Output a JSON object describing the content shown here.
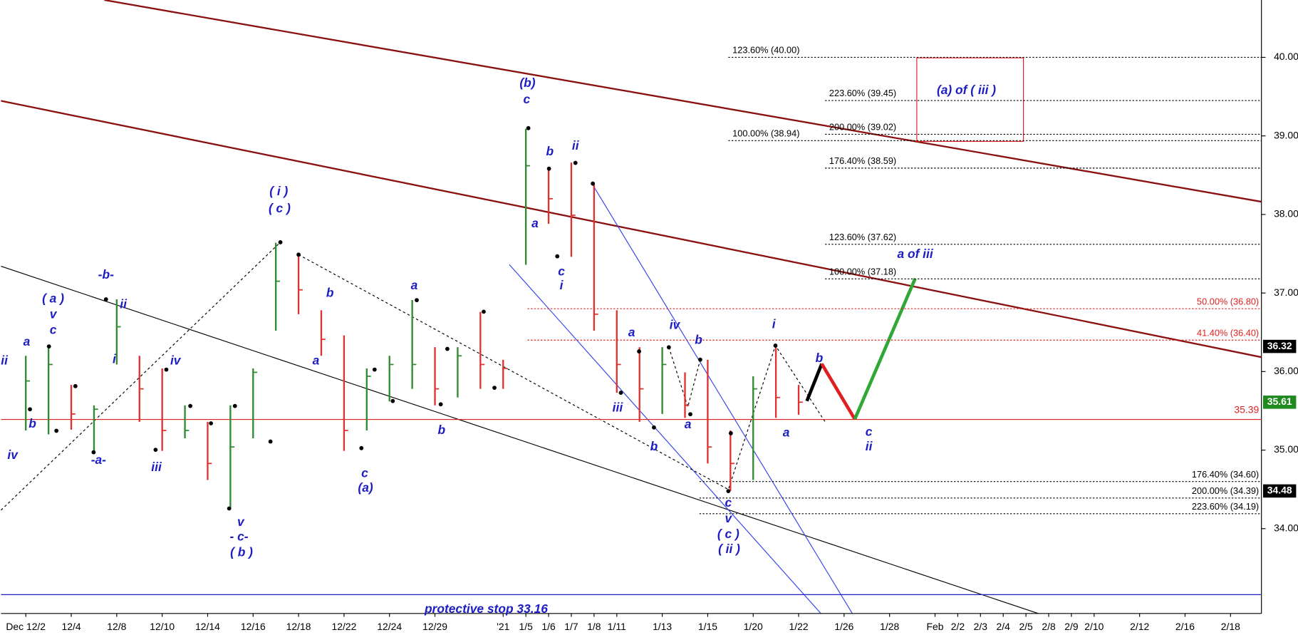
{
  "chart_data": {
    "type": "ohlc",
    "x": [
      0,
      1,
      2,
      3,
      4,
      5,
      6,
      7,
      8,
      9,
      10,
      11,
      12,
      13,
      14,
      15,
      16,
      17,
      18,
      19,
      20,
      21,
      22,
      23,
      24,
      25,
      26,
      27,
      28,
      29,
      30,
      31,
      32,
      33,
      34
    ],
    "high": [
      36.2,
      36.33,
      35.83,
      35.57,
      36.92,
      36.2,
      36.04,
      35.57,
      35.36,
      35.57,
      36.04,
      37.64,
      37.48,
      36.78,
      36.46,
      36.04,
      36.2,
      36.91,
      36.31,
      36.31,
      36.76,
      36.15,
      39.09,
      38.59,
      38.66,
      38.39,
      36.78,
      36.31,
      36.31,
      35.99,
      36.15,
      35.25,
      35.94,
      36.33,
      35.83
    ],
    "low": [
      35.25,
      35.2,
      35.26,
      34.96,
      36.09,
      35.36,
      34.99,
      35.15,
      34.62,
      34.25,
      35.15,
      36.52,
      36.73,
      36.2,
      34.99,
      35.25,
      35.62,
      35.78,
      35.57,
      35.67,
      35.78,
      35.78,
      37.36,
      37.88,
      37.46,
      36.52,
      35.73,
      35.36,
      35.46,
      35.41,
      34.83,
      34.48,
      34.62,
      35.41,
      35.45
    ],
    "close": [
      35.88,
      36.09,
      35.46,
      35.52,
      36.57,
      35.78,
      35.25,
      35.25,
      34.83,
      35.04,
      35.99,
      37.15,
      37.04,
      36.41,
      35.25,
      35.94,
      36.09,
      36.09,
      35.78,
      36.2,
      36.09,
      36.04,
      38.62,
      38.2,
      37.99,
      36.73,
      36.09,
      35.78,
      36.09,
      35.57,
      35.04,
      34.83,
      35.78,
      35.67,
      35.61
    ],
    "up_color": "#2e8b2e",
    "down_color": "#e03030",
    "xlim": [
      -1.09,
      54.36
    ],
    "ylim": [
      32.92,
      40.73
    ],
    "xticks": [
      {
        "value": 0,
        "label": "Dec 12/2"
      },
      {
        "value": 2,
        "label": "12/4"
      },
      {
        "value": 4,
        "label": "12/8"
      },
      {
        "value": 6,
        "label": "12/10"
      },
      {
        "value": 8,
        "label": "12/14"
      },
      {
        "value": 10,
        "label": "12/16"
      },
      {
        "value": 12,
        "label": "12/18"
      },
      {
        "value": 14,
        "label": "12/22"
      },
      {
        "value": 16,
        "label": "12/24"
      },
      {
        "value": 18,
        "label": "12/29"
      },
      {
        "value": 21,
        "label": "'21"
      },
      {
        "value": 22,
        "label": "1/5"
      },
      {
        "value": 23,
        "label": "1/6"
      },
      {
        "value": 24,
        "label": "1/7"
      },
      {
        "value": 25,
        "label": "1/8"
      },
      {
        "value": 26,
        "label": "1/11"
      },
      {
        "value": 28,
        "label": "1/13"
      },
      {
        "value": 30,
        "label": "1/15"
      },
      {
        "value": 32,
        "label": "1/20"
      },
      {
        "value": 34,
        "label": "1/22"
      },
      {
        "value": 36,
        "label": "1/26"
      },
      {
        "value": 38,
        "label": "1/28"
      },
      {
        "value": 40,
        "label": "Feb"
      },
      {
        "value": 41,
        "label": "2/2"
      },
      {
        "value": 42,
        "label": "2/3"
      },
      {
        "value": 43,
        "label": "2/4"
      },
      {
        "value": 44,
        "label": "2/5"
      },
      {
        "value": 45,
        "label": "2/8"
      },
      {
        "value": 46,
        "label": "2/9"
      },
      {
        "value": 47,
        "label": "2/10"
      },
      {
        "value": 49,
        "label": "2/12"
      },
      {
        "value": 51,
        "label": "2/16"
      },
      {
        "value": 53,
        "label": "2/18"
      }
    ],
    "yticks": [
      {
        "value": 34,
        "label": "34.00"
      },
      {
        "value": 35,
        "label": "35.00"
      },
      {
        "value": 36,
        "label": "36.00"
      },
      {
        "value": 37,
        "label": "37.00"
      },
      {
        "value": 38,
        "label": "38.00"
      },
      {
        "value": 39,
        "label": "39.00"
      },
      {
        "value": 40,
        "label": "40.00"
      }
    ],
    "price_tags": [
      {
        "value": 36.32,
        "color": "#000000"
      },
      {
        "value": 35.61,
        "color": "#1f8a1f"
      },
      {
        "value": 34.48,
        "color": "#000000"
      }
    ],
    "fib_levels": [
      {
        "label": "123.60% (40.00)",
        "value": 40.0,
        "color": "#000000"
      },
      {
        "label": "100.00% (38.94)",
        "value": 38.94,
        "color": "#000000"
      },
      {
        "label": "223.60% (39.45)",
        "value": 39.45,
        "color": "#000000"
      },
      {
        "label": "200.00% (39.02)",
        "value": 39.02,
        "color": "#000000"
      },
      {
        "label": "176.40% (38.59)",
        "value": 38.59,
        "color": "#000000"
      },
      {
        "label": "123.60% (37.62)",
        "value": 37.62,
        "color": "#000000"
      },
      {
        "label": "100.00% (37.18)",
        "value": 37.18,
        "color": "#000000"
      },
      {
        "label": "50.00% (36.80)",
        "value": 36.8,
        "color": "#e02020"
      },
      {
        "label": "41.40% (36.40)",
        "value": 36.4,
        "color": "#e02020"
      },
      {
        "label": "176.40% (34.60)",
        "value": 34.6,
        "color": "#000000"
      },
      {
        "label": "200.00% (34.39)",
        "value": 34.39,
        "color": "#000000"
      },
      {
        "label": "223.60% (34.19)",
        "value": 34.19,
        "color": "#000000"
      }
    ],
    "support": {
      "value": 35.39,
      "color": "#e02020"
    },
    "stop": {
      "value": 33.16,
      "text": "protective stop 33.16",
      "color": "#1d1dc4"
    },
    "wave_labels": [
      "ii",
      "iv",
      "b",
      "a",
      "( a )",
      "v",
      "c",
      "-b-",
      "ii",
      "i",
      "-a-",
      "iii",
      "iv",
      "( i )",
      "( c )",
      "b",
      "a",
      "c",
      "(a)",
      "a",
      "b",
      "v",
      "- c-",
      "( b )",
      "(b)",
      "c",
      "b",
      "ii",
      "a",
      "c",
      "i",
      "a",
      "iv",
      "b",
      "iii",
      "b",
      "a",
      "i",
      "a",
      "b",
      "c",
      "ii",
      "c",
      "v",
      "( c )",
      "( ii )",
      "a of iii",
      "(a) of ( iii )"
    ]
  }
}
